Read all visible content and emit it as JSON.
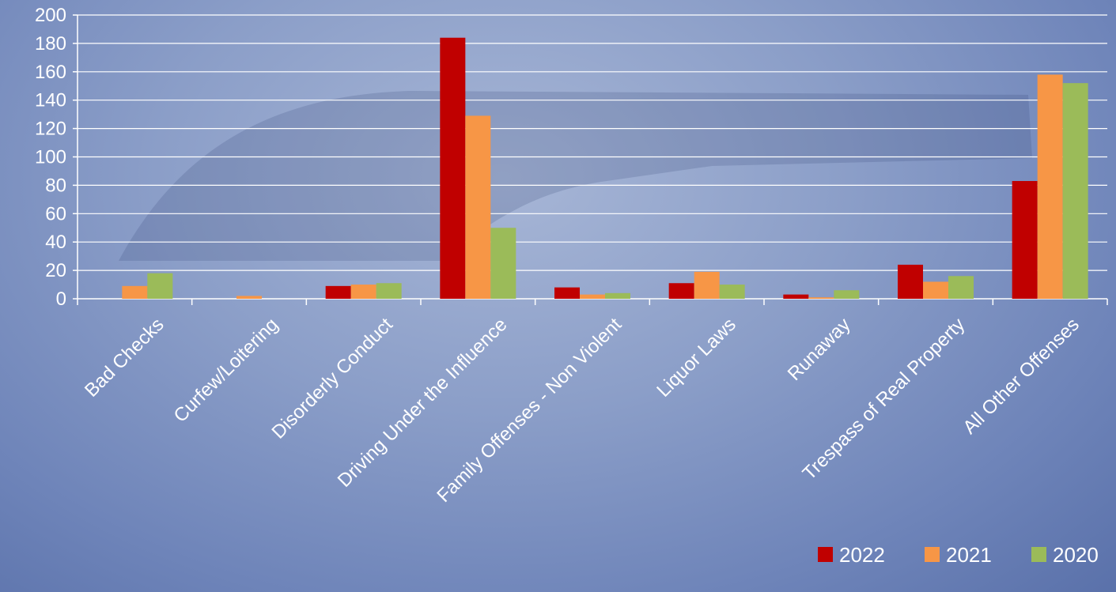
{
  "chart_data": {
    "type": "bar",
    "title": "",
    "xlabel": "",
    "ylabel": "",
    "ylim": [
      0,
      200
    ],
    "yticks": [
      0,
      20,
      40,
      60,
      80,
      100,
      120,
      140,
      160,
      180,
      200
    ],
    "grid": true,
    "legend_position": "bottom-right",
    "categories": [
      "Bad Checks",
      "Curfew/Loitering",
      "Disorderly Conduct",
      "Driving Under the Influence",
      "Family Offenses - Non Violent",
      "Liquor Laws",
      "Runaway",
      "Trespass of Real Property",
      "All Other Offenses"
    ],
    "series": [
      {
        "name": "2022",
        "color": "#c00000",
        "values": [
          0,
          0,
          9,
          184,
          8,
          11,
          3,
          24,
          83
        ]
      },
      {
        "name": "2021",
        "color": "#f79646",
        "values": [
          9,
          2,
          10,
          129,
          3,
          19,
          1,
          12,
          158
        ]
      },
      {
        "name": "2020",
        "color": "#9bbb59",
        "values": [
          18,
          0,
          11,
          50,
          4,
          10,
          6,
          16,
          152
        ]
      }
    ]
  }
}
